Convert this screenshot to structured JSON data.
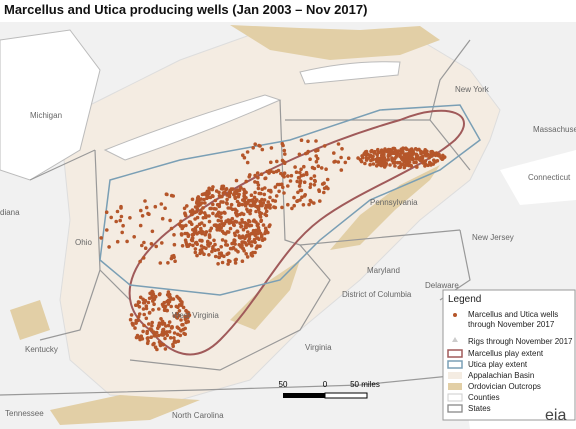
{
  "header": {
    "title": "Marcellus and Utica producing wells (Jan 2003 – Nov 2017)"
  },
  "map": {
    "labels": [
      "Michigan",
      "New York",
      "Massachusetts",
      "Connecticut",
      "Pennsylvania",
      "New Jersey",
      "Ohio",
      "diana",
      "Maryland",
      "District of Columbia",
      "Delaware",
      "West Virginia",
      "Virginia",
      "Kentucky",
      "Tennessee",
      "North Carolina"
    ]
  },
  "legend": {
    "title": "Legend",
    "items": [
      "Marcellus and Utica wells through November 2017",
      "Rigs through November 2017",
      "Marcellus play extent",
      "Utica play extent",
      "Appalachian Basin",
      "Ordovician Outcrops",
      "Counties",
      "States"
    ]
  },
  "scale_bar": {
    "labels": [
      "50",
      "0",
      "50 miles"
    ]
  },
  "logo": "eia"
}
